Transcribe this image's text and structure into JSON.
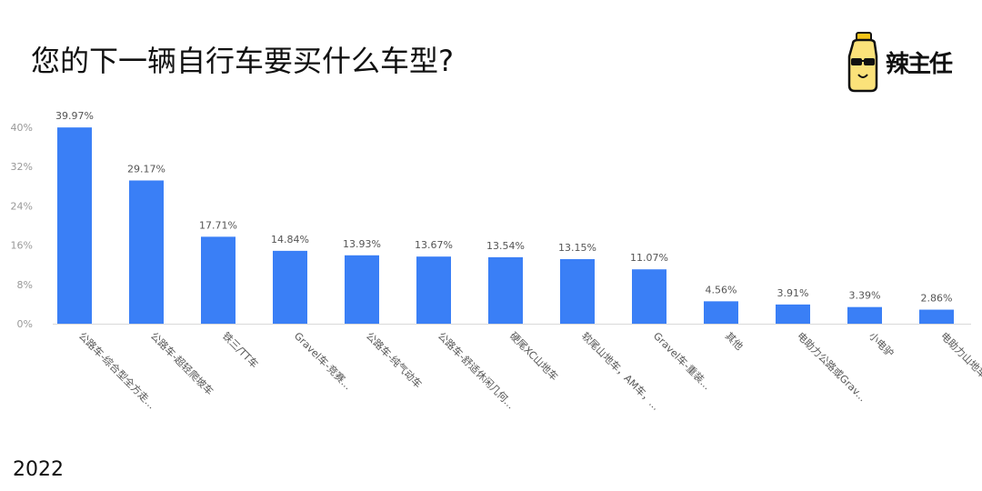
{
  "title": "您的下一辆自行车要买什么车型?",
  "logo": {
    "text": "辣主任",
    "icon": "bottle-glasses-mascot-icon"
  },
  "year": "2022",
  "colors": {
    "bar": "#3a7ff6",
    "axis_text": "#999999",
    "label_text": "#555555"
  },
  "chart_data": {
    "type": "bar",
    "categories": [
      "公路车-综合型全方走...",
      "公路车-超轻爬坡车",
      "铁三/TT车",
      "Gravel车-竞赛...",
      "公路车-纯气动车",
      "公路车-舒适休闲几何...",
      "硬尾XC山地车",
      "软尾山地车，AM车，...",
      "Gravel车-重装...",
      "其他",
      "电助力公路或Grav...",
      "小电驴",
      "电助力山地车"
    ],
    "values": [
      39.97,
      29.17,
      17.71,
      14.84,
      13.93,
      13.67,
      13.54,
      13.15,
      11.07,
      4.56,
      3.91,
      3.39,
      2.86
    ],
    "data_labels": [
      "39.97%",
      "29.17%",
      "17.71%",
      "14.84%",
      "13.93%",
      "13.67%",
      "13.54%",
      "13.15%",
      "11.07%",
      "4.56%",
      "3.91%",
      "3.39%",
      "2.86%"
    ],
    "y_ticks": [
      0,
      8,
      16,
      24,
      32,
      40
    ],
    "y_tick_labels": [
      "0%",
      "8%",
      "16%",
      "24%",
      "32%",
      "40%"
    ],
    "ylim": [
      0,
      40
    ],
    "grid": false,
    "legend": "none"
  }
}
